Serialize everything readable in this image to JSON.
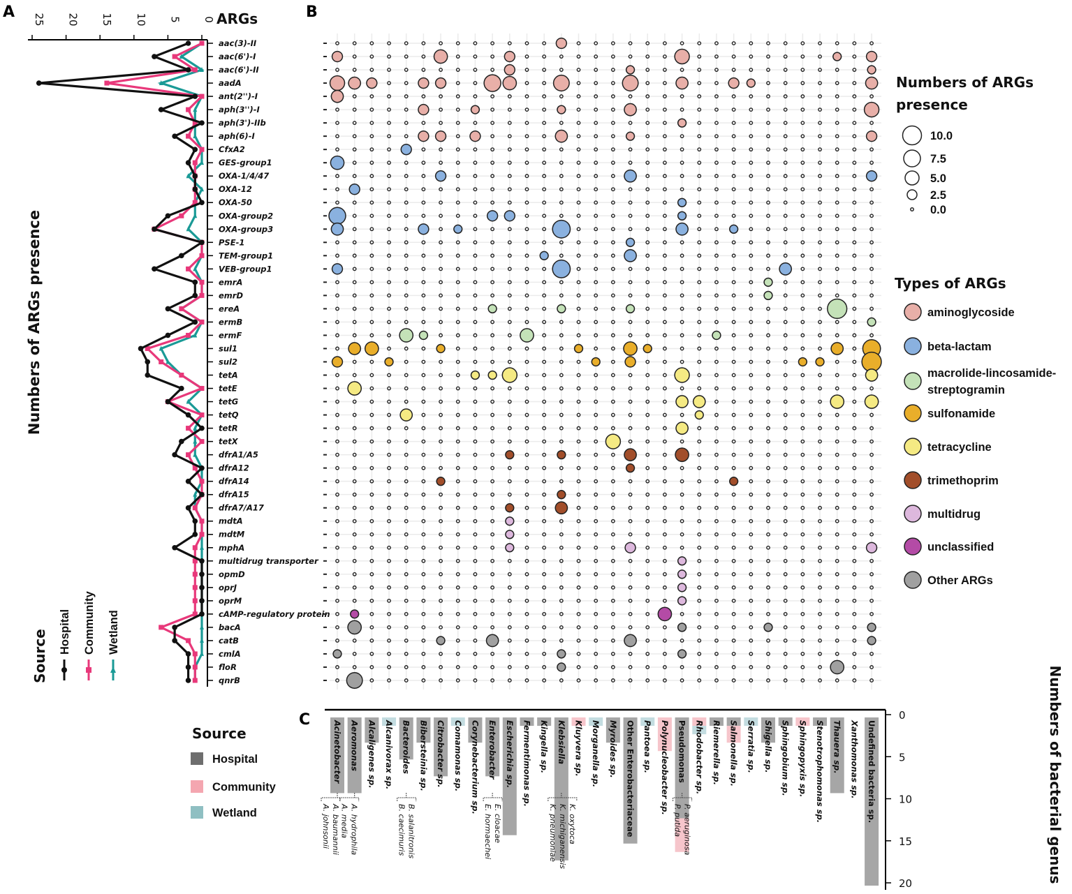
{
  "panel_labels": {
    "a": "A",
    "b": "B",
    "c": "C"
  },
  "colors": {
    "hospital": "#111111",
    "community": "#E8387A",
    "wetland": "#1A9A96",
    "bar_hospital": "#A6A6A6",
    "bar_community": "#F6C5CB",
    "bar_wetland": "#C3DCE0"
  },
  "chart_data": [
    {
      "type": "line",
      "id": "A",
      "title": "ARGs",
      "ylabel": "Numbers of ARGs presence",
      "x_ticks": [
        25,
        20,
        15,
        10,
        5,
        0
      ],
      "xlim": [
        25,
        0
      ],
      "legend": {
        "title": "Source",
        "entries": [
          "Hospital",
          "Community",
          "Wetland"
        ],
        "placement": "bottom-left"
      },
      "categories": [
        "aac(3)-II",
        "aac(6')-I",
        "aac(6')-II",
        "aadA",
        "ant(2'')-I",
        "aph(3'')-I",
        "aph(3')-IIb",
        "aph(6)-I",
        "CfxA2",
        "GES-group1",
        "OXA-1/4/47",
        "OXA-12",
        "OXA-50",
        "OXA-group2",
        "OXA-group3",
        "PSE-1",
        "TEM-group1",
        "VEB-group1",
        "emrA",
        "emrD",
        "ereA",
        "ermB",
        "ermF",
        "sul1",
        "sul2",
        "tetA",
        "tetE",
        "tetG",
        "tetQ",
        "tetR",
        "tetX",
        "dfrA1/A5",
        "dfrA12",
        "dfrA14",
        "dfrA15",
        "dfrA7/A17",
        "mdtA",
        "mdtM",
        "mphA",
        "multidrug transporter",
        "opmD",
        "oprJ",
        "oprM",
        "cAMP-regulatory protein",
        "bacA",
        "catB",
        "cmlA",
        "floR",
        "qnrB"
      ],
      "series": [
        {
          "name": "Hospital",
          "values": [
            2,
            7,
            2,
            24,
            1,
            6,
            0,
            4,
            1,
            2,
            1,
            1,
            0,
            5,
            7,
            0,
            3,
            7,
            1,
            1,
            5,
            1,
            5,
            9,
            8,
            8,
            3,
            5,
            2,
            0,
            3,
            4,
            0,
            2,
            0,
            2,
            1,
            1,
            4,
            0,
            0,
            0,
            0,
            0,
            4,
            4,
            2,
            2,
            2
          ]
        },
        {
          "name": "Community",
          "values": [
            0,
            4,
            1,
            14,
            0,
            2,
            1,
            2,
            0,
            1,
            1,
            1,
            1,
            3,
            7,
            0,
            0,
            2,
            0,
            0,
            3,
            0,
            2,
            8,
            6,
            3,
            0,
            5,
            0,
            2,
            0,
            2,
            1,
            0,
            0,
            1,
            0,
            0,
            1,
            1,
            1,
            1,
            1,
            1,
            6,
            2,
            1,
            1,
            1
          ]
        },
        {
          "name": "Wetland",
          "values": [
            0,
            3,
            0,
            6,
            0,
            1,
            1,
            1,
            0,
            0,
            2,
            0,
            1,
            1,
            2,
            0,
            0,
            1,
            0,
            0,
            3,
            0,
            1,
            6,
            5,
            3,
            0,
            2,
            0,
            1,
            1,
            1,
            0,
            0,
            1,
            1,
            0,
            0,
            0,
            0,
            0,
            0,
            0,
            0,
            0,
            0,
            0,
            1,
            1
          ]
        }
      ]
    },
    {
      "type": "scatter",
      "id": "B",
      "subtype": "bubble",
      "size_legend": {
        "title_line1": "Numbers of ARGs",
        "title_line2": "presence",
        "values": [
          "10.0",
          "7.5",
          "5.0",
          "2.5",
          "0.0"
        ]
      },
      "type_legend": {
        "title": "Types of ARGs",
        "entries": [
          {
            "key": "aminoglycoside",
            "label": "aminoglycoside",
            "color": "#E8AFA8"
          },
          {
            "key": "betalactam",
            "label": "beta-lactam",
            "color": "#8AB1DF"
          },
          {
            "key": "mls",
            "label": "macrolide-lincosamide-",
            "label2": "streptogramin",
            "color": "#C4E2B8"
          },
          {
            "key": "sulfonamide",
            "label": "sulfonamide",
            "color": "#E9AE2A"
          },
          {
            "key": "tetracycline",
            "label": "tetracycline",
            "color": "#F5EA83"
          },
          {
            "key": "trimethoprim",
            "label": "trimethoprim",
            "color": "#A24E2A"
          },
          {
            "key": "multidrug",
            "label": "multidrug",
            "color": "#DDB8DD"
          },
          {
            "key": "unclassified",
            "label": "unclassified",
            "color": "#B44BA6"
          },
          {
            "key": "other",
            "label": "Other ARGs",
            "color": "#A0A0A0"
          }
        ]
      },
      "row_types": [
        "aminoglycoside",
        "aminoglycoside",
        "aminoglycoside",
        "aminoglycoside",
        "aminoglycoside",
        "aminoglycoside",
        "aminoglycoside",
        "aminoglycoside",
        "betalactam",
        "betalactam",
        "betalactam",
        "betalactam",
        "betalactam",
        "betalactam",
        "betalactam",
        "betalactam",
        "betalactam",
        "betalactam",
        "mls",
        "mls",
        "mls",
        "mls",
        "mls",
        "sulfonamide",
        "sulfonamide",
        "tetracycline",
        "tetracycline",
        "tetracycline",
        "tetracycline",
        "tetracycline",
        "tetracycline",
        "trimethoprim",
        "trimethoprim",
        "trimethoprim",
        "trimethoprim",
        "trimethoprim",
        "multidrug",
        "multidrug",
        "multidrug",
        "multidrug",
        "multidrug",
        "multidrug",
        "multidrug",
        "unclassified",
        "other",
        "other",
        "other",
        "other",
        "other"
      ],
      "bubbles_by_row": [
        [
          [
            13,
            2
          ]
        ],
        [
          [
            0,
            2
          ],
          [
            6,
            4
          ],
          [
            10,
            2
          ],
          [
            20,
            5
          ],
          [
            29,
            1
          ],
          [
            31,
            2
          ]
        ],
        [
          [
            10,
            2
          ],
          [
            17,
            1
          ],
          [
            31,
            1
          ]
        ],
        [
          [
            0,
            5
          ],
          [
            1,
            3
          ],
          [
            2,
            2
          ],
          [
            5,
            2
          ],
          [
            6,
            2
          ],
          [
            9,
            7
          ],
          [
            10,
            4
          ],
          [
            13,
            6
          ],
          [
            17,
            6
          ],
          [
            20,
            3
          ],
          [
            23,
            2
          ],
          [
            24,
            1
          ],
          [
            31,
            3
          ]
        ],
        [
          [
            0,
            3
          ]
        ],
        [
          [
            5,
            2
          ],
          [
            8,
            1
          ],
          [
            13,
            1
          ],
          [
            17,
            3
          ],
          [
            31,
            5
          ]
        ],
        [
          [
            20,
            1
          ]
        ],
        [
          [
            5,
            2
          ],
          [
            6,
            2
          ],
          [
            8,
            2
          ],
          [
            13,
            3
          ],
          [
            17,
            1
          ],
          [
            31,
            2
          ]
        ],
        [
          [
            4,
            2
          ]
        ],
        [
          [
            0,
            4
          ]
        ],
        [
          [
            6,
            2
          ],
          [
            17,
            3
          ],
          [
            31,
            2
          ]
        ],
        [
          [
            1,
            2
          ]
        ],
        [
          [
            20,
            1
          ]
        ],
        [
          [
            0,
            7
          ],
          [
            9,
            2
          ],
          [
            10,
            2
          ],
          [
            20,
            1
          ]
        ],
        [
          [
            0,
            3
          ],
          [
            5,
            2
          ],
          [
            7,
            1
          ],
          [
            13,
            8
          ],
          [
            20,
            3
          ],
          [
            23,
            1
          ]
        ],
        [
          [
            17,
            1
          ]
        ],
        [
          [
            12,
            1
          ],
          [
            17,
            3
          ]
        ],
        [
          [
            0,
            2
          ],
          [
            13,
            8
          ],
          [
            26,
            3
          ]
        ],
        [
          [
            25,
            1
          ]
        ],
        [
          [
            25,
            1
          ]
        ],
        [
          [
            9,
            1
          ],
          [
            13,
            1
          ],
          [
            17,
            1
          ],
          [
            29,
            10
          ]
        ],
        [
          [
            31,
            1
          ]
        ],
        [
          [
            4,
            4
          ],
          [
            5,
            1
          ],
          [
            11,
            4
          ],
          [
            22,
            1
          ]
        ],
        [
          [
            1,
            3
          ],
          [
            2,
            4
          ],
          [
            6,
            1
          ],
          [
            14,
            1
          ],
          [
            17,
            4
          ],
          [
            18,
            1
          ],
          [
            29,
            3
          ],
          [
            31,
            8
          ]
        ],
        [
          [
            0,
            2
          ],
          [
            3,
            1
          ],
          [
            15,
            1
          ],
          [
            17,
            2
          ],
          [
            27,
            1
          ],
          [
            28,
            1
          ],
          [
            31,
            10
          ]
        ],
        [
          [
            8,
            1
          ],
          [
            9,
            1
          ],
          [
            10,
            5
          ],
          [
            20,
            5
          ],
          [
            31,
            3
          ]
        ],
        [
          [
            1,
            4
          ]
        ],
        [
          [
            20,
            3
          ],
          [
            21,
            3
          ],
          [
            29,
            4
          ],
          [
            31,
            4
          ]
        ],
        [
          [
            4,
            3
          ],
          [
            21,
            1
          ]
        ],
        [
          [
            20,
            3
          ]
        ],
        [
          [
            16,
            5
          ]
        ],
        [
          [
            10,
            1
          ],
          [
            13,
            1
          ],
          [
            17,
            3
          ],
          [
            20,
            4
          ]
        ],
        [
          [
            17,
            1
          ]
        ],
        [
          [
            6,
            1
          ],
          [
            23,
            1
          ]
        ],
        [
          [
            13,
            1
          ]
        ],
        [
          [
            10,
            1
          ],
          [
            13,
            3
          ]
        ],
        [
          [
            10,
            1
          ]
        ],
        [
          [
            10,
            1
          ]
        ],
        [
          [
            10,
            1
          ],
          [
            17,
            2
          ],
          [
            31,
            2
          ]
        ],
        [
          [
            20,
            1
          ]
        ],
        [
          [
            20,
            1
          ]
        ],
        [
          [
            20,
            1
          ]
        ],
        [
          [
            20,
            1
          ]
        ],
        [
          [
            1,
            1
          ],
          [
            19,
            4
          ]
        ],
        [
          [
            1,
            4
          ],
          [
            20,
            1
          ],
          [
            25,
            1
          ],
          [
            31,
            1
          ]
        ],
        [
          [
            6,
            1
          ],
          [
            9,
            3
          ],
          [
            17,
            3
          ],
          [
            31,
            1
          ]
        ],
        [
          [
            0,
            1
          ],
          [
            13,
            1
          ],
          [
            20,
            1
          ]
        ],
        [
          [
            13,
            1
          ],
          [
            29,
            4
          ]
        ],
        [
          [
            1,
            6
          ]
        ]
      ]
    },
    {
      "type": "bar",
      "id": "C",
      "stacked": true,
      "ylabel": "Numbers of bacterial genus",
      "ylim": [
        0,
        20
      ],
      "y_ticks": [
        0,
        5,
        10,
        15,
        20
      ],
      "legend": {
        "title": "Source",
        "entries": [
          "Hospital",
          "Community",
          "Wetland"
        ],
        "placement": "left"
      },
      "categories": [
        {
          "name": "Acinetobacter",
          "sub": [
            "A. johnsonii",
            "A. baumannii"
          ]
        },
        {
          "name": "Aeromonas",
          "sub": [
            "A. media",
            "A. hydrophila"
          ]
        },
        {
          "name": "Alcaligenes sp."
        },
        {
          "name": "Alcanivorax sp."
        },
        {
          "name": "Bacteroides",
          "sub": [
            "B. caecimuris",
            "B. salanitronis"
          ]
        },
        {
          "name": "Bibersteinia sp."
        },
        {
          "name": "Citrobacter sp."
        },
        {
          "name": "Comamonas sp."
        },
        {
          "name": "Corynebacterium sp."
        },
        {
          "name": "Enterobacter",
          "sub": [
            "E. hormaechei",
            "E. cloacae"
          ]
        },
        {
          "name": "Escherichia sp."
        },
        {
          "name": "Fermentimonas sp."
        },
        {
          "name": "Kingella sp."
        },
        {
          "name": "Klebsiella",
          "sub": [
            "K. pneumoniae",
            "K. michiganensis",
            "K. oxytoca"
          ]
        },
        {
          "name": "Kluyvera sp."
        },
        {
          "name": "Morganella sp."
        },
        {
          "name": "Myroides sp."
        },
        {
          "name": "Other Enterobacteriaceae"
        },
        {
          "name": "Pantoea sp."
        },
        {
          "name": "Polynucleobacter sp."
        },
        {
          "name": "Pseudomonas",
          "sub": [
            "P. putida",
            "P. aeruginosa"
          ]
        },
        {
          "name": "Rhodobacter sp."
        },
        {
          "name": "Riemerella sp."
        },
        {
          "name": "Salmonella sp."
        },
        {
          "name": "Serratia sp."
        },
        {
          "name": "Shigella sp."
        },
        {
          "name": "Sphingobium sp."
        },
        {
          "name": "Sphingopyxis sp."
        },
        {
          "name": "Stenotrophomonas sp."
        },
        {
          "name": "Thauera sp."
        },
        {
          "name": "Xanthomonas sp."
        },
        {
          "name": "Undefined bacteria sp."
        }
      ],
      "series": [
        {
          "name": "Hospital",
          "values": [
            9,
            9,
            3,
            0,
            5,
            3,
            7,
            0,
            3,
            7,
            14,
            1,
            1,
            17,
            0,
            0,
            3,
            15,
            0,
            0,
            12,
            0,
            1,
            1,
            0,
            3,
            1,
            0,
            1,
            9,
            0,
            20
          ]
        },
        {
          "name": "Community",
          "values": [
            0,
            0,
            0,
            0,
            0,
            0,
            0,
            0,
            0,
            0,
            0,
            0,
            0,
            0,
            1,
            0,
            0,
            0,
            0,
            4,
            4,
            1,
            0,
            2,
            0,
            0,
            0,
            1,
            0,
            0,
            0,
            0
          ]
        },
        {
          "name": "Wetland",
          "values": [
            0,
            0,
            0,
            1,
            0,
            0,
            0,
            1,
            0,
            0,
            0,
            0,
            0,
            0,
            0,
            1,
            0,
            0,
            1,
            0,
            0,
            1,
            0,
            0,
            1,
            0,
            0,
            0,
            0,
            0,
            0,
            0
          ]
        }
      ]
    }
  ]
}
